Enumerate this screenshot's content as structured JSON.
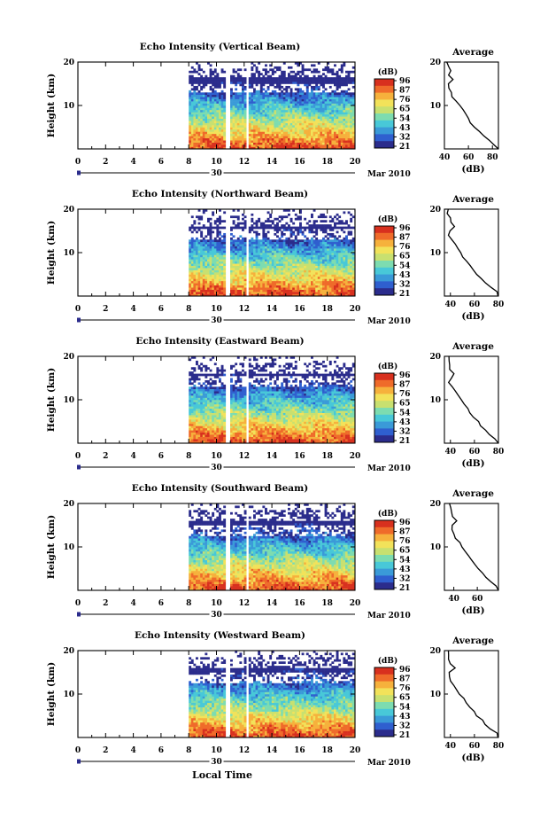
{
  "footer": {
    "xlabel": "Local Time"
  },
  "colorscale": {
    "unit": "(dB)",
    "tick_labels": [
      "96",
      "87",
      "76",
      "65",
      "54",
      "43",
      "32",
      "21"
    ],
    "colors": [
      "#2b2c8c",
      "#2f5fcf",
      "#3a9ad8",
      "#48c8d8",
      "#7ddcb0",
      "#c8e070",
      "#f2e25a",
      "#f6b13c",
      "#ef6b2a",
      "#d8301e"
    ]
  },
  "date_axis": {
    "day": "30",
    "month_year": "Mar 2010"
  },
  "chart_data": [
    {
      "type": "heatmap",
      "title": "Echo Intensity (Vertical Beam)",
      "xlabel": "",
      "ylabel": "Height (km)",
      "x_ticks": [
        "0",
        "2",
        "4",
        "6",
        "8",
        "10",
        "12",
        "14",
        "16",
        "18",
        "20"
      ],
      "y_ticks": [
        "20",
        "10"
      ],
      "xlim": [
        0,
        20
      ],
      "ylim": [
        0,
        20
      ],
      "data_window": [
        8,
        20
      ],
      "gaps": [
        [
          10.6,
          10.9
        ],
        [
          12.0,
          12.2
        ]
      ],
      "avg": {
        "title": "Average",
        "xlabel": "(dB)",
        "x_ticks": [
          "40",
          "60",
          "80"
        ],
        "y_ticks": [
          "20",
          "10"
        ],
        "xlim": [
          40,
          85
        ],
        "profile": [
          [
            0,
            85
          ],
          [
            1,
            82
          ],
          [
            2,
            77
          ],
          [
            3,
            72
          ],
          [
            4,
            69
          ],
          [
            5,
            65
          ],
          [
            6,
            62
          ],
          [
            7,
            60
          ],
          [
            8,
            57
          ],
          [
            9,
            55
          ],
          [
            10,
            52
          ],
          [
            11,
            50
          ],
          [
            12,
            47
          ],
          [
            13,
            45
          ],
          [
            14,
            43
          ],
          [
            15,
            44
          ],
          [
            16,
            47
          ],
          [
            17,
            44
          ],
          [
            18,
            45
          ],
          [
            19,
            43
          ],
          [
            20,
            42
          ]
        ]
      }
    },
    {
      "type": "heatmap",
      "title": "Echo Intensity (Northward Beam)",
      "xlabel": "",
      "ylabel": "Height (km)",
      "x_ticks": [
        "0",
        "2",
        "4",
        "6",
        "8",
        "10",
        "12",
        "14",
        "16",
        "18",
        "20"
      ],
      "y_ticks": [
        "20",
        "10"
      ],
      "xlim": [
        0,
        20
      ],
      "ylim": [
        0,
        20
      ],
      "data_window": [
        8,
        20
      ],
      "gaps": [
        [
          10.6,
          10.9
        ],
        [
          12.0,
          12.2
        ]
      ],
      "avg": {
        "title": "Average",
        "xlabel": "(dB)",
        "x_ticks": [
          "40",
          "60",
          "80"
        ],
        "y_ticks": [
          "20",
          "10"
        ],
        "xlim": [
          35,
          80
        ],
        "profile": [
          [
            0,
            80
          ],
          [
            1,
            78
          ],
          [
            2,
            73
          ],
          [
            3,
            69
          ],
          [
            4,
            66
          ],
          [
            5,
            62
          ],
          [
            6,
            59
          ],
          [
            7,
            56
          ],
          [
            8,
            53
          ],
          [
            9,
            50
          ],
          [
            10,
            48
          ],
          [
            11,
            46
          ],
          [
            12,
            43
          ],
          [
            13,
            41
          ],
          [
            14,
            39
          ],
          [
            15,
            40
          ],
          [
            16,
            43
          ],
          [
            17,
            40
          ],
          [
            18,
            39
          ],
          [
            19,
            38
          ],
          [
            20,
            38
          ]
        ]
      }
    },
    {
      "type": "heatmap",
      "title": "Echo Intensity (Eastward Beam)",
      "xlabel": "",
      "ylabel": "Height (km)",
      "x_ticks": [
        "0",
        "2",
        "4",
        "6",
        "8",
        "10",
        "12",
        "14",
        "16",
        "18",
        "20"
      ],
      "y_ticks": [
        "20",
        "10"
      ],
      "xlim": [
        0,
        20
      ],
      "ylim": [
        0,
        20
      ],
      "data_window": [
        8,
        20
      ],
      "gaps": [
        [
          10.6,
          10.9
        ],
        [
          12.0,
          12.2
        ]
      ],
      "avg": {
        "title": "Average",
        "xlabel": "(dB)",
        "x_ticks": [
          "40",
          "60",
          "80"
        ],
        "y_ticks": [
          "20",
          "10"
        ],
        "xlim": [
          35,
          80
        ],
        "profile": [
          [
            0,
            80
          ],
          [
            1,
            78
          ],
          [
            2,
            73
          ],
          [
            3,
            70
          ],
          [
            4,
            66
          ],
          [
            5,
            63
          ],
          [
            6,
            60
          ],
          [
            7,
            57
          ],
          [
            8,
            54
          ],
          [
            9,
            51
          ],
          [
            10,
            49
          ],
          [
            11,
            46
          ],
          [
            12,
            44
          ],
          [
            13,
            41
          ],
          [
            14,
            39
          ],
          [
            15,
            40
          ],
          [
            16,
            43
          ],
          [
            17,
            40
          ],
          [
            18,
            40
          ],
          [
            19,
            38
          ],
          [
            20,
            38
          ]
        ]
      }
    },
    {
      "type": "heatmap",
      "title": "Echo Intensity (Southward Beam)",
      "xlabel": "",
      "ylabel": "Height (km)",
      "x_ticks": [
        "0",
        "2",
        "4",
        "6",
        "8",
        "10",
        "12",
        "14",
        "16",
        "18",
        "20"
      ],
      "y_ticks": [
        "20",
        "10"
      ],
      "xlim": [
        0,
        20
      ],
      "ylim": [
        0,
        20
      ],
      "data_window": [
        8,
        20
      ],
      "gaps": [
        [
          10.6,
          10.9
        ],
        [
          12.0,
          12.2
        ]
      ],
      "avg": {
        "title": "Average",
        "xlabel": "(dB)",
        "x_ticks": [
          "40",
          "60"
        ],
        "y_ticks": [
          "20",
          "10"
        ],
        "xlim": [
          32,
          78
        ],
        "profile": [
          [
            0,
            78
          ],
          [
            1,
            76
          ],
          [
            2,
            71
          ],
          [
            3,
            68
          ],
          [
            4,
            64
          ],
          [
            5,
            61
          ],
          [
            6,
            58
          ],
          [
            7,
            55
          ],
          [
            8,
            52
          ],
          [
            9,
            50
          ],
          [
            10,
            47
          ],
          [
            11,
            45
          ],
          [
            12,
            42
          ],
          [
            13,
            40
          ],
          [
            14,
            38
          ],
          [
            15,
            39
          ],
          [
            16,
            42
          ],
          [
            17,
            39
          ],
          [
            18,
            38
          ],
          [
            19,
            37
          ],
          [
            20,
            37
          ]
        ]
      }
    },
    {
      "type": "heatmap",
      "title": "Echo Intensity (Westward Beam)",
      "xlabel": "",
      "ylabel": "Height (km)",
      "x_ticks": [
        "0",
        "2",
        "4",
        "6",
        "8",
        "10",
        "12",
        "14",
        "16",
        "18",
        "20"
      ],
      "y_ticks": [
        "20",
        "10"
      ],
      "xlim": [
        0,
        20
      ],
      "ylim": [
        0,
        20
      ],
      "data_window": [
        8,
        20
      ],
      "gaps": [
        [
          10.6,
          10.9
        ],
        [
          12.0,
          12.2
        ]
      ],
      "avg": {
        "title": "Average",
        "xlabel": "(dB)",
        "x_ticks": [
          "40",
          "60",
          "80"
        ],
        "y_ticks": [
          "20",
          "10"
        ],
        "xlim": [
          35,
          80
        ],
        "profile": [
          [
            0,
            80
          ],
          [
            1,
            78
          ],
          [
            2,
            73
          ],
          [
            3,
            69
          ],
          [
            4,
            66
          ],
          [
            5,
            62
          ],
          [
            6,
            59
          ],
          [
            7,
            56
          ],
          [
            8,
            53
          ],
          [
            9,
            51
          ],
          [
            10,
            48
          ],
          [
            11,
            46
          ],
          [
            12,
            43
          ],
          [
            13,
            41
          ],
          [
            14,
            39
          ],
          [
            15,
            40
          ],
          [
            16,
            43
          ],
          [
            17,
            40
          ],
          [
            18,
            39
          ],
          [
            19,
            38
          ],
          [
            20,
            38
          ]
        ]
      }
    }
  ]
}
